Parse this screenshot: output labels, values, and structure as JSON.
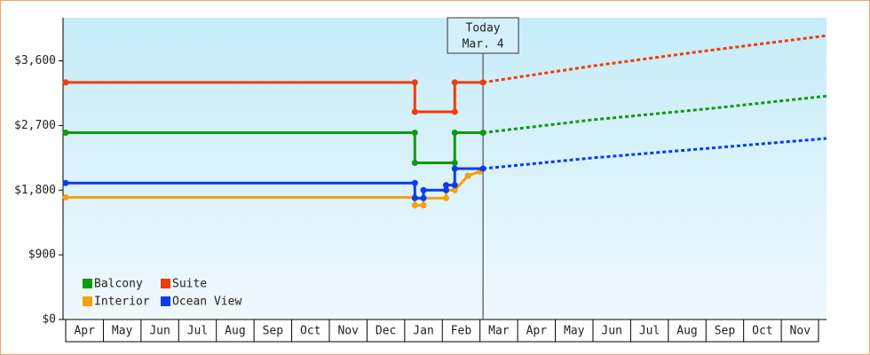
{
  "chart_data": {
    "type": "line",
    "categories": [
      "Apr",
      "May",
      "Jun",
      "Jul",
      "Aug",
      "Sep",
      "Oct",
      "Nov",
      "Dec",
      "Jan",
      "Feb",
      "Mar",
      "Apr",
      "May",
      "Jun",
      "Jul",
      "Aug",
      "Sep",
      "Oct",
      "Nov"
    ],
    "xlim": [
      0,
      20.2
    ],
    "ylim": [
      0,
      4200
    ],
    "yticks": [
      {
        "value": 0,
        "label": "$0"
      },
      {
        "value": 900,
        "label": "$900"
      },
      {
        "value": 1800,
        "label": "$1,800"
      },
      {
        "value": 2700,
        "label": "$2,700"
      },
      {
        "value": 3600,
        "label": "$3,600"
      }
    ],
    "today": {
      "x": 11.08,
      "label": [
        "Today",
        "Mar. 4"
      ]
    },
    "series": [
      {
        "name": "Balcony",
        "color": "#109a10",
        "x": [
          0,
          9.27,
          9.27,
          10.33,
          10.33,
          11.08
        ],
        "values": [
          2600,
          2600,
          2180,
          2180,
          2600,
          2600
        ],
        "forecast_x": [
          11.08,
          14,
          17,
          20.2
        ],
        "forecast_values": [
          2600,
          2780,
          2930,
          3110
        ]
      },
      {
        "name": "Suite",
        "color": "#f03c0a",
        "x": [
          0,
          9.27,
          9.27,
          10.33,
          10.33,
          11.08
        ],
        "values": [
          3300,
          3300,
          2890,
          2890,
          3300,
          3300
        ],
        "forecast_x": [
          11.08,
          14,
          17,
          20.2
        ],
        "forecast_values": [
          3300,
          3530,
          3740,
          3950
        ]
      },
      {
        "name": "Interior",
        "color": "#f5a010",
        "x": [
          0,
          9.27,
          9.27,
          9.5,
          9.5,
          10.1,
          10.1,
          10.33,
          10.68,
          11
        ],
        "values": [
          1700,
          1700,
          1590,
          1590,
          1690,
          1690,
          1800,
          1800,
          2000,
          2060
        ],
        "forecast_x": [],
        "forecast_values": []
      },
      {
        "name": "Ocean View",
        "color": "#0a3cf0",
        "x": [
          0,
          9.27,
          9.27,
          9.5,
          9.5,
          10.1,
          10.1,
          10.33,
          10.33,
          11.08
        ],
        "values": [
          1900,
          1900,
          1690,
          1690,
          1800,
          1800,
          1870,
          1870,
          2100,
          2100
        ],
        "forecast_x": [
          11.08,
          14,
          17,
          20.2
        ],
        "forecast_values": [
          2100,
          2250,
          2380,
          2520
        ]
      }
    ]
  }
}
